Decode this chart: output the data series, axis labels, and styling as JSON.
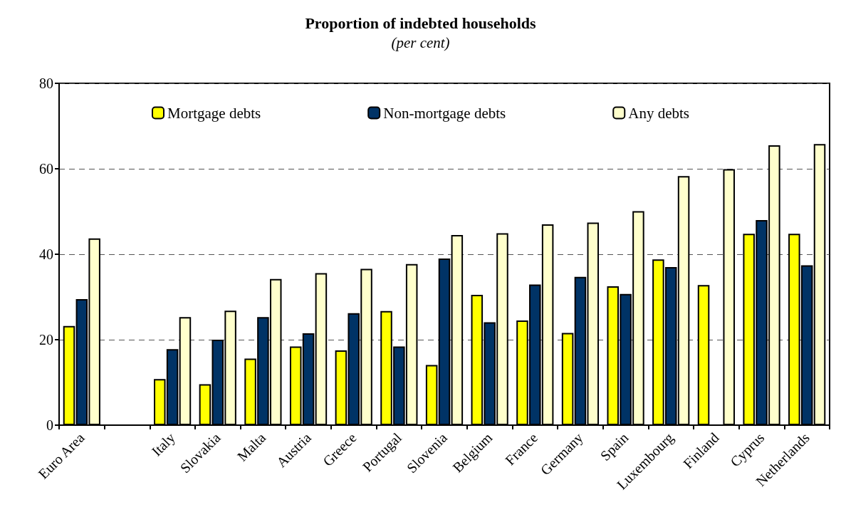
{
  "chart_data": {
    "type": "bar",
    "title": "Proportion of indebted households",
    "subtitle": "(per cent)",
    "categories": [
      "Euro Area",
      null,
      "Italy",
      "Slovakia",
      "Malta",
      "Austria",
      "Greece",
      "Portugal",
      "Slovenia",
      "Belgium",
      "France",
      "Germany",
      "Spain",
      "Luxembourg",
      "Finland",
      "Cyprus",
      "Netherlands"
    ],
    "series": [
      {
        "name": "Mortgage debts",
        "color": "#ffff00",
        "values": [
          23.2,
          null,
          10.8,
          9.6,
          15.6,
          18.4,
          17.5,
          26.7,
          14.1,
          30.5,
          24.5,
          21.6,
          32.5,
          38.8,
          32.8,
          44.8,
          44.8
        ]
      },
      {
        "name": "Non-mortgage debts",
        "color": "#003366",
        "values": [
          29.5,
          null,
          17.8,
          20,
          25.3,
          21.5,
          26.2,
          18.4,
          39,
          24.1,
          32.9,
          34.7,
          30.7,
          37,
          null,
          48,
          37.4
        ]
      },
      {
        "name": "Any debts",
        "color": "#ffffcc",
        "values": [
          43.7,
          null,
          25.3,
          26.8,
          34.2,
          35.6,
          36.6,
          37.7,
          44.5,
          44.9,
          47,
          47.4,
          50.1,
          58.3,
          59.9,
          65.5,
          65.8
        ]
      }
    ],
    "ylim": [
      0,
      80
    ],
    "yticks": [
      0,
      20,
      40,
      60,
      80
    ],
    "grid": "y",
    "legend": "top"
  }
}
